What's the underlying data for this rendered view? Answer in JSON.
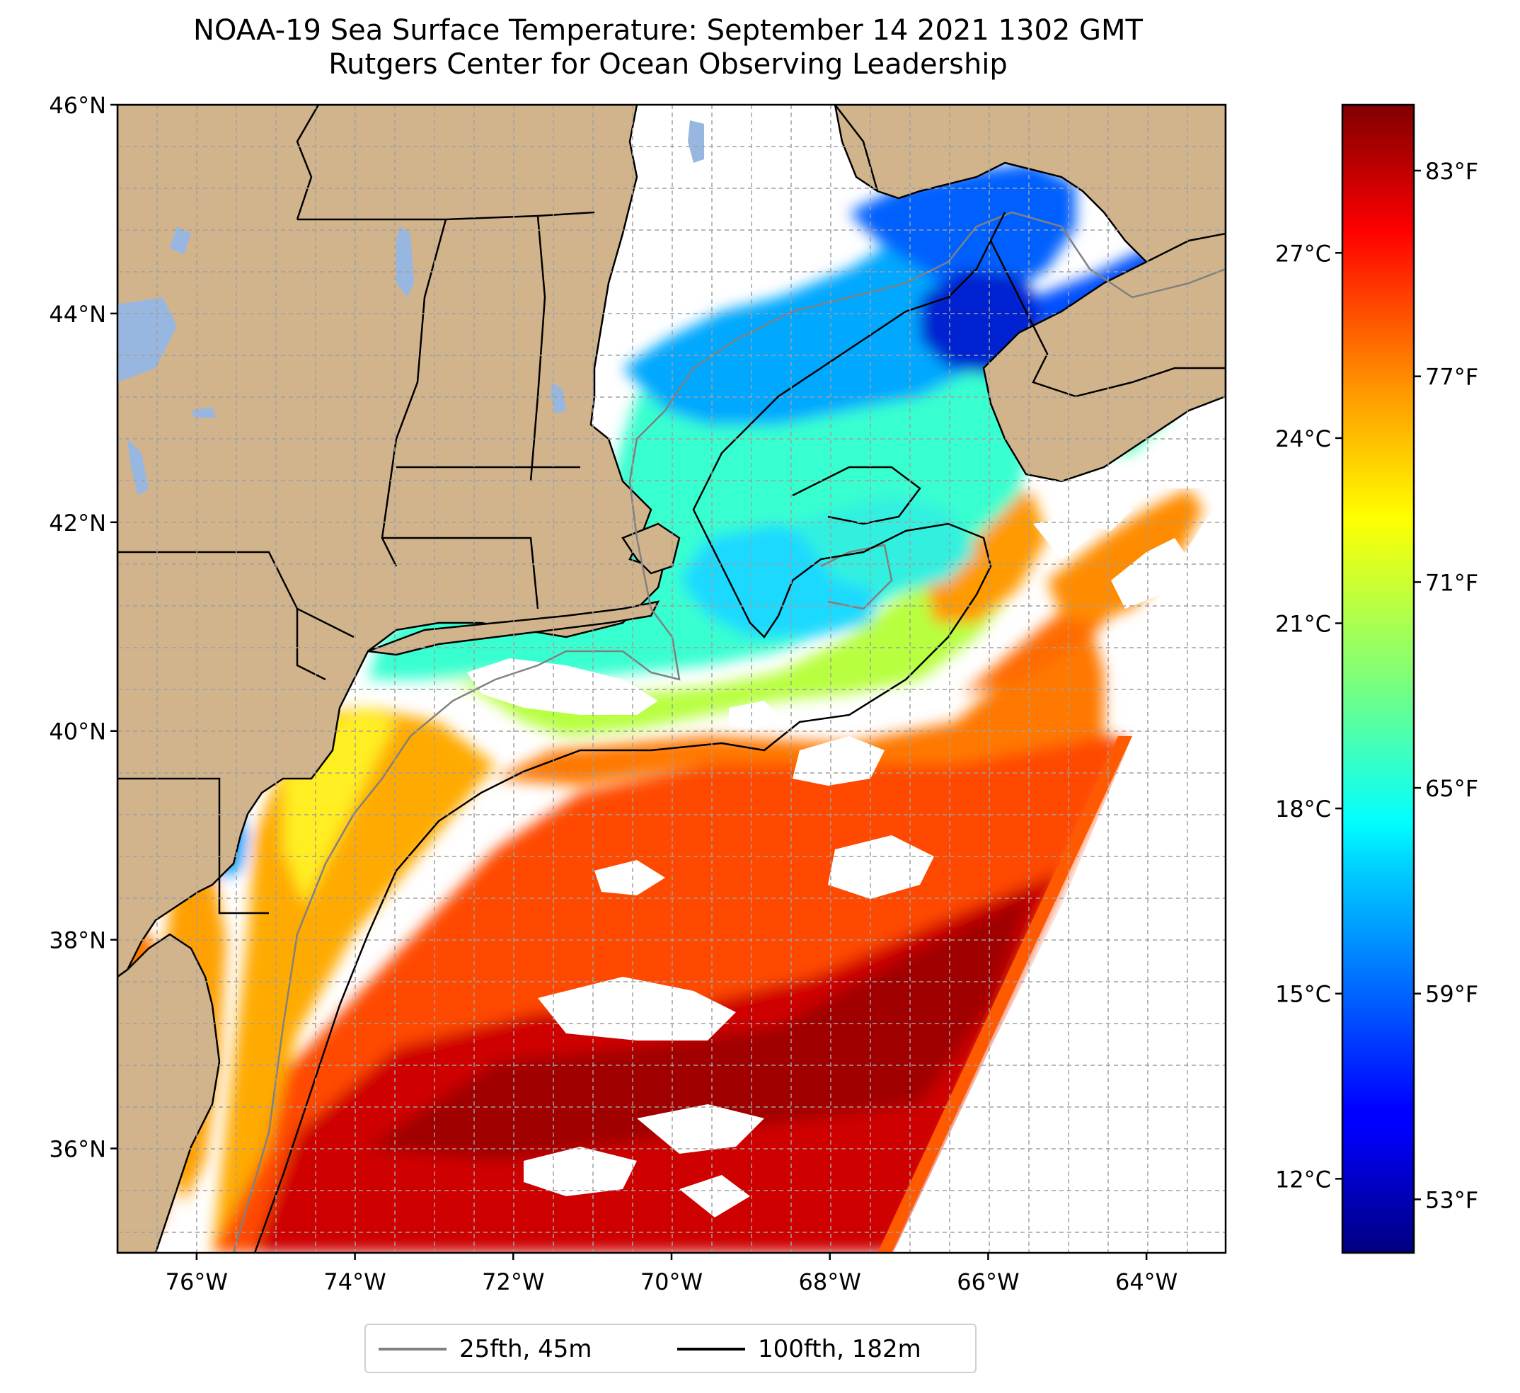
{
  "title": {
    "line1": "NOAA-19 Sea Surface Temperature: September 14 2021 1302 GMT",
    "line2": "Rutgers Center for Ocean Observing Leadership"
  },
  "map": {
    "lon_range": [
      -77,
      -63
    ],
    "lat_range": [
      35,
      46
    ],
    "lat_ticks": [
      {
        "value": 36,
        "label": "36°N"
      },
      {
        "value": 38,
        "label": "38°N"
      },
      {
        "value": 40,
        "label": "40°N"
      },
      {
        "value": 42,
        "label": "42°N"
      },
      {
        "value": 44,
        "label": "44°N"
      },
      {
        "value": 46,
        "label": "46°N"
      }
    ],
    "lon_ticks": [
      {
        "value": -76,
        "label": "76°W"
      },
      {
        "value": -74,
        "label": "74°W"
      },
      {
        "value": -72,
        "label": "72°W"
      },
      {
        "value": -70,
        "label": "70°W"
      },
      {
        "value": -68,
        "label": "68°W"
      },
      {
        "value": -66,
        "label": "66°W"
      },
      {
        "value": -64,
        "label": "64°W"
      }
    ],
    "grid": true,
    "colors": {
      "land": "#d2b48c",
      "lakes": "#98b7e0",
      "grid": "#a0a0a0",
      "cloud_mask": "#ffffff"
    }
  },
  "colorbar": {
    "colormap": "jet",
    "range_c": [
      10.8,
      29.4
    ],
    "celsius_ticks": [
      {
        "value": 12,
        "label": "12°C"
      },
      {
        "value": 15,
        "label": "15°C"
      },
      {
        "value": 18,
        "label": "18°C"
      },
      {
        "value": 21,
        "label": "21°C"
      },
      {
        "value": 24,
        "label": "24°C"
      },
      {
        "value": 27,
        "label": "27°C"
      }
    ],
    "fahrenheit_ticks": [
      {
        "value": 53,
        "label": "53°F"
      },
      {
        "value": 59,
        "label": "59°F"
      },
      {
        "value": 65,
        "label": "65°F"
      },
      {
        "value": 71,
        "label": "71°F"
      },
      {
        "value": 77,
        "label": "77°F"
      },
      {
        "value": 83,
        "label": "83°F"
      }
    ]
  },
  "legend": {
    "placement": "below map",
    "entries": [
      {
        "label": "25fth, 45m",
        "color": "#808080"
      },
      {
        "label": "100fth, 182m",
        "color": "#000000"
      }
    ]
  }
}
